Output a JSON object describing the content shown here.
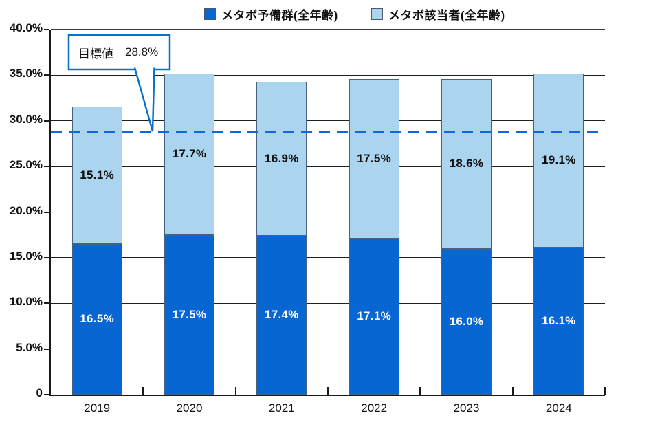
{
  "colors": {
    "primary_bar": "#0766d1",
    "secondary_bar": "#abd4ee",
    "bar_border": "#46627f",
    "target_line": "#1168d8",
    "callout_border": "#0a70c8",
    "gridline": "#1f1f1f",
    "axis": "#1a1a1a",
    "label_on_primary": "#ffffff",
    "label_on_secondary": "#0d0d0d",
    "text": "#111111"
  },
  "legend": {
    "items": [
      {
        "label": "メタボ予備群(全年齢)",
        "swatch": "primary_bar"
      },
      {
        "label": "メタボ該当者(全年齢)",
        "swatch": "secondary_bar"
      }
    ]
  },
  "target_callout": {
    "label": "目標値",
    "value": "28.8%"
  },
  "chart_data": {
    "type": "bar",
    "stacked": true,
    "title": "",
    "categories": [
      "2019",
      "2020",
      "2021",
      "2022",
      "2023",
      "2024"
    ],
    "series": [
      {
        "name": "メタボ予備群(全年齢)",
        "values": [
          16.5,
          17.5,
          17.4,
          17.1,
          16.0,
          16.1
        ]
      },
      {
        "name": "メタボ該当者(全年齢)",
        "values": [
          15.1,
          17.7,
          16.9,
          17.5,
          18.6,
          19.1
        ]
      }
    ],
    "totals": [
      31.6,
      35.2,
      34.3,
      34.6,
      34.6,
      35.2
    ],
    "ylim": [
      0,
      40
    ],
    "ytick_step": 5,
    "ytick_labels": [
      "0",
      "5.0%",
      "10.0%",
      "15.0%",
      "20.0%",
      "25.0%",
      "30.0%",
      "35.0%",
      "40.0%"
    ],
    "target_line": 28.8,
    "grid": true,
    "legend_position": "top",
    "value_label_suffix": "%"
  }
}
